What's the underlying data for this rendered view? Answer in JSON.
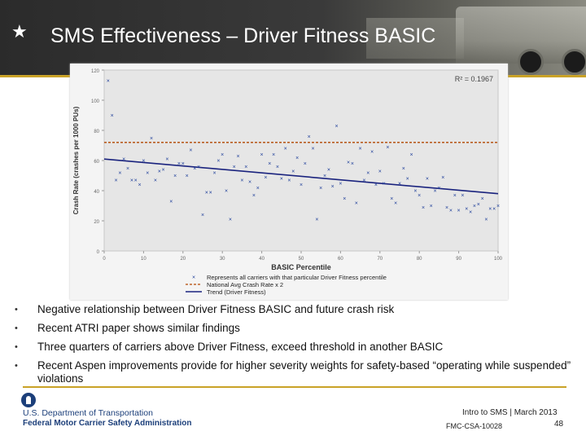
{
  "slide": {
    "title": "SMS Effectiveness – Driver Fitness BASIC",
    "bullets": [
      "Negative relationship between Driver Fitness BASIC and future crash risk",
      "Recent ATRI paper shows similar findings",
      "Three quarters of carriers above Driver Fitness, exceed threshold in another BASIC",
      "Recent Aspen improvements provide for higher severity weights for safety-based “operating while suspended” violations"
    ],
    "footer": {
      "agency_line1": "U.S. Department of Transportation",
      "agency_line2": "Federal Motor Carrier Safety Administration",
      "course": "Intro to SMS | March 2013",
      "doc_id": "FMC-CSA-10028",
      "page": "48"
    },
    "colors": {
      "accent_gold": "#c9a227",
      "dot_blue": "#1c3f7a",
      "points": "#1f3f9a",
      "national_avg": "#b34700",
      "trend": "#1a237e"
    },
    "icons": [
      "star-icon",
      "dot-logo-icon",
      "bullet-dot-icon"
    ]
  },
  "chart_data": {
    "type": "scatter",
    "xlabel": "BASIC Percentile",
    "ylabel": "Crash Rate (crashes per 1000 PUs)",
    "xlim": [
      0,
      100
    ],
    "ylim": [
      0,
      120
    ],
    "xticks": [
      0,
      10,
      20,
      30,
      40,
      50,
      60,
      70,
      80,
      90,
      100
    ],
    "yticks": [
      0,
      20,
      40,
      60,
      80,
      100,
      120
    ],
    "r_squared_label": "R² = 0.1967",
    "national_avg_x2": 72,
    "trend": {
      "x": [
        0,
        100
      ],
      "y": [
        61,
        38
      ]
    },
    "legend": [
      "Represents all carriers with that particular Driver Fitness percentile",
      "National Avg Crash Rate x 2",
      "Trend (Driver Fitness)"
    ],
    "points": [
      [
        1,
        113
      ],
      [
        2,
        90
      ],
      [
        3,
        47
      ],
      [
        4,
        52
      ],
      [
        5,
        61
      ],
      [
        6,
        55
      ],
      [
        7,
        47
      ],
      [
        8,
        47
      ],
      [
        9,
        44
      ],
      [
        10,
        60
      ],
      [
        11,
        52
      ],
      [
        12,
        75
      ],
      [
        13,
        47
      ],
      [
        14,
        53
      ],
      [
        15,
        54
      ],
      [
        16,
        61
      ],
      [
        17,
        33
      ],
      [
        18,
        50
      ],
      [
        19,
        58
      ],
      [
        20,
        58
      ],
      [
        21,
        50
      ],
      [
        22,
        67
      ],
      [
        23,
        55
      ],
      [
        24,
        56
      ],
      [
        25,
        24
      ],
      [
        26,
        39
      ],
      [
        27,
        39
      ],
      [
        28,
        52
      ],
      [
        29,
        60
      ],
      [
        30,
        64
      ],
      [
        31,
        40
      ],
      [
        32,
        21
      ],
      [
        33,
        56
      ],
      [
        34,
        63
      ],
      [
        35,
        47
      ],
      [
        36,
        56
      ],
      [
        37,
        46
      ],
      [
        38,
        37
      ],
      [
        39,
        42
      ],
      [
        40,
        64
      ],
      [
        41,
        49
      ],
      [
        42,
        58
      ],
      [
        43,
        64
      ],
      [
        44,
        56
      ],
      [
        45,
        48
      ],
      [
        46,
        68
      ],
      [
        47,
        47
      ],
      [
        48,
        53
      ],
      [
        49,
        62
      ],
      [
        50,
        44
      ],
      [
        51,
        58
      ],
      [
        52,
        76
      ],
      [
        53,
        68
      ],
      [
        54,
        21
      ],
      [
        55,
        42
      ],
      [
        56,
        50
      ],
      [
        57,
        54
      ],
      [
        58,
        43
      ],
      [
        59,
        83
      ],
      [
        60,
        45
      ],
      [
        61,
        35
      ],
      [
        62,
        59
      ],
      [
        63,
        58
      ],
      [
        64,
        32
      ],
      [
        65,
        68
      ],
      [
        66,
        47
      ],
      [
        67,
        52
      ],
      [
        68,
        66
      ],
      [
        69,
        44
      ],
      [
        70,
        53
      ],
      [
        71,
        45
      ],
      [
        72,
        69
      ],
      [
        73,
        35
      ],
      [
        74,
        32
      ],
      [
        75,
        45
      ],
      [
        76,
        55
      ],
      [
        77,
        48
      ],
      [
        78,
        64
      ],
      [
        79,
        40
      ],
      [
        80,
        37
      ],
      [
        81,
        29
      ],
      [
        82,
        48
      ],
      [
        83,
        30
      ],
      [
        84,
        40
      ],
      [
        85,
        42
      ],
      [
        86,
        49
      ],
      [
        87,
        29
      ],
      [
        88,
        27
      ],
      [
        89,
        37
      ],
      [
        90,
        27
      ],
      [
        91,
        37
      ],
      [
        92,
        28
      ],
      [
        93,
        26
      ],
      [
        94,
        30
      ],
      [
        95,
        31
      ],
      [
        96,
        35
      ],
      [
        97,
        21
      ],
      [
        98,
        28
      ],
      [
        99,
        28
      ],
      [
        100,
        30
      ]
    ]
  }
}
